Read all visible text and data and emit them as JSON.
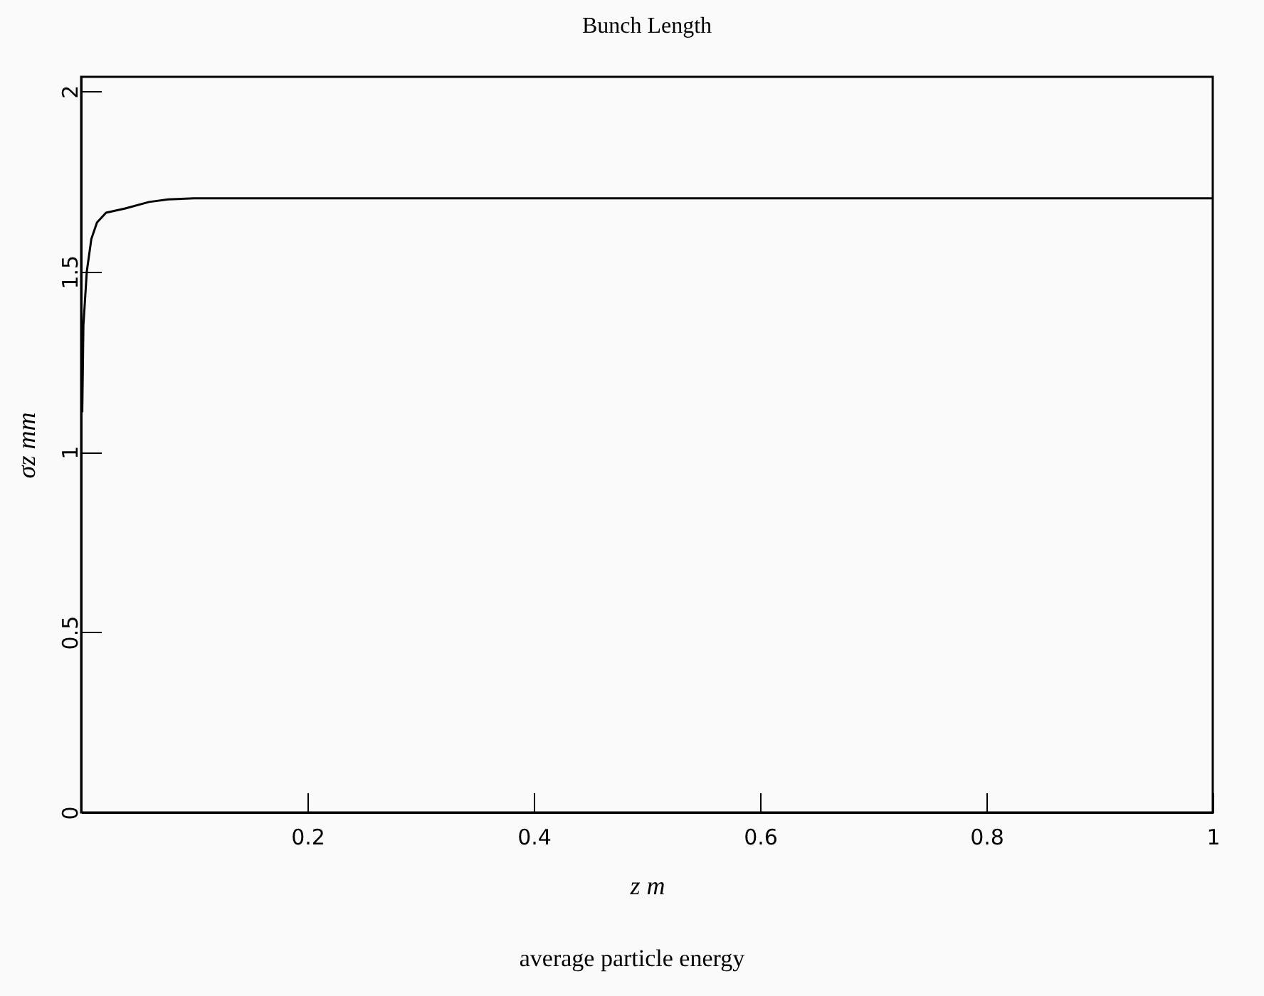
{
  "chart_data": {
    "type": "line",
    "title": "Bunch Length",
    "xlabel": "z m",
    "ylabel": "σz mm",
    "annotations": [
      "average particle energy"
    ],
    "x": [
      0.001,
      0.002,
      0.005,
      0.009,
      0.014,
      0.022,
      0.039,
      0.06,
      0.077,
      0.1,
      0.3,
      0.5,
      0.7,
      1.0
    ],
    "series": [
      {
        "color": "#000000",
        "values": [
          1.11,
          1.35,
          1.5,
          1.59,
          1.636,
          1.663,
          1.675,
          1.693,
          1.7,
          1.703,
          1.703,
          1.703,
          1.703,
          1.703
        ]
      }
    ],
    "xlim": [
      0,
      1
    ],
    "xticks": [
      {
        "value": 0,
        "label": null
      },
      0.2,
      0.4,
      0.6,
      0.8,
      1
    ],
    "ylim": [
      0,
      2.04
    ],
    "yticks": [
      0,
      0.5,
      1,
      1.5,
      2
    ],
    "grid": false,
    "marker": "none",
    "line_style": "solid"
  }
}
